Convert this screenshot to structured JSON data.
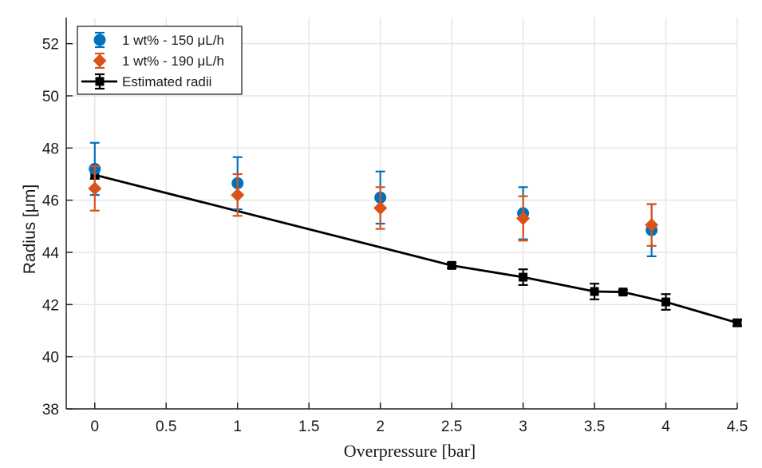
{
  "chart_data": {
    "type": "scatter",
    "title": "",
    "xlabel": "Overpressure [bar]",
    "ylabel": "Radius [μm]",
    "xlim": [
      -0.2,
      4.5
    ],
    "ylim": [
      38,
      53
    ],
    "xticks": [
      0,
      0.5,
      1,
      1.5,
      2,
      2.5,
      3,
      3.5,
      4,
      4.5
    ],
    "xtick_labels": [
      "0",
      "0.5",
      "1",
      "1.5",
      "2",
      "2.5",
      "3",
      "3.5",
      "4",
      "4.5"
    ],
    "yticks": [
      38,
      40,
      42,
      44,
      46,
      48,
      50,
      52
    ],
    "ytick_labels": [
      "38",
      "40",
      "42",
      "44",
      "46",
      "48",
      "50",
      "52"
    ],
    "grid": true,
    "legend_position": "top-left",
    "series": [
      {
        "name": "1 wt% - 150 μL/h",
        "color": "#0072BD",
        "marker": "circle",
        "line": false,
        "x": [
          0,
          1,
          2,
          3,
          3.9
        ],
        "y": [
          47.2,
          46.65,
          46.1,
          45.5,
          44.85
        ],
        "err": [
          1.0,
          1.0,
          1.0,
          1.0,
          1.0
        ]
      },
      {
        "name": "1 wt% - 190 μL/h",
        "color": "#D95319",
        "marker": "diamond",
        "line": false,
        "x": [
          0,
          1,
          2,
          3,
          3.9
        ],
        "y": [
          46.45,
          46.2,
          45.7,
          45.3,
          45.05
        ],
        "err": [
          0.85,
          0.8,
          0.8,
          0.85,
          0.8
        ]
      },
      {
        "name": "Estimated radii",
        "color": "#000000",
        "marker": "square",
        "line": true,
        "x": [
          0,
          2.5,
          3,
          3.5,
          3.7,
          4,
          4.5
        ],
        "y": [
          46.97,
          43.5,
          43.05,
          42.5,
          42.48,
          42.1,
          41.3
        ],
        "err": [
          0.15,
          0.1,
          0.3,
          0.3,
          0.08,
          0.3,
          0.12
        ]
      }
    ]
  }
}
